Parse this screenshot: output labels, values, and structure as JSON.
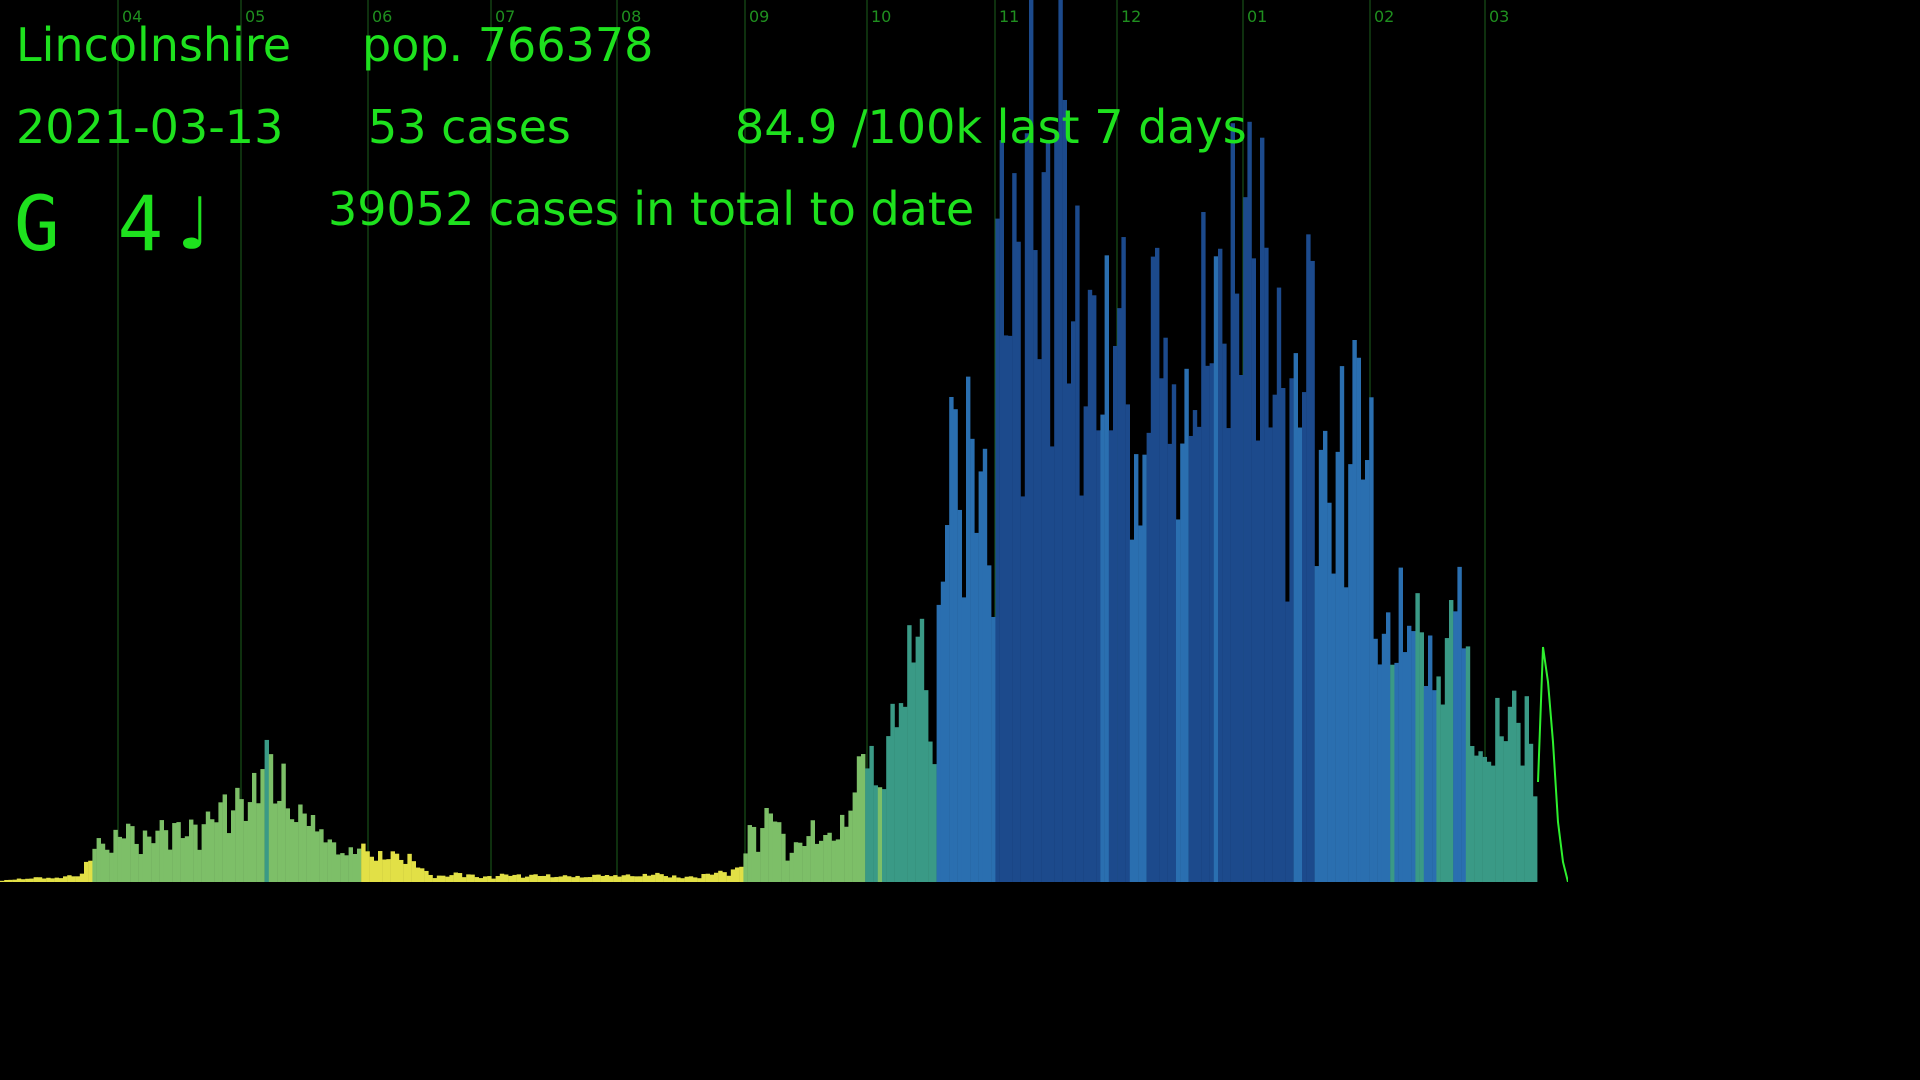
{
  "header": {
    "area": "Lincolnshire",
    "population": "pop. 766378",
    "date": "2021-03-13",
    "cases_today": "53 cases",
    "rate": "84.9 /100k last 7 days",
    "total": "39052 cases in total to date",
    "note_symbol": "G 4♩"
  },
  "colors": {
    "text": "#1ee11e",
    "line": "#2ef02e",
    "grid": "#1d5f1d",
    "tiers": [
      "#e2e046",
      "#7dbf68",
      "#3a9a86",
      "#2a6fb0",
      "#1c4a8c"
    ]
  },
  "chart_data": {
    "type": "bar",
    "x_axis": "months",
    "month_labels": [
      "04",
      "05",
      "06",
      "07",
      "08",
      "09",
      "10",
      "11",
      "12",
      "01",
      "02",
      "03"
    ],
    "series": [
      {
        "values": [
          [
            0,
            1
          ],
          [
            20,
            3
          ],
          [
            40,
            5
          ],
          [
            60,
            4
          ],
          [
            80,
            7
          ],
          [
            95,
            40
          ],
          [
            110,
            35
          ],
          [
            130,
            55
          ],
          [
            150,
            45
          ],
          [
            170,
            50
          ],
          [
            190,
            60
          ],
          [
            210,
            55
          ],
          [
            225,
            75
          ],
          [
            235,
            95
          ],
          [
            245,
            80
          ],
          [
            255,
            90
          ],
          [
            265,
            130
          ],
          [
            275,
            85
          ],
          [
            285,
            120
          ],
          [
            295,
            70
          ],
          [
            310,
            60
          ],
          [
            320,
            55
          ],
          [
            330,
            40
          ],
          [
            345,
            35
          ],
          [
            360,
            30
          ],
          [
            375,
            28
          ],
          [
            390,
            30
          ],
          [
            405,
            25
          ],
          [
            415,
            18
          ],
          [
            425,
            10
          ],
          [
            440,
            6
          ],
          [
            460,
            8
          ],
          [
            480,
            5
          ],
          [
            500,
            7
          ],
          [
            520,
            6
          ],
          [
            540,
            8
          ],
          [
            560,
            5
          ],
          [
            580,
            6
          ],
          [
            600,
            7
          ],
          [
            620,
            6
          ],
          [
            640,
            8
          ],
          [
            660,
            7
          ],
          [
            680,
            5
          ],
          [
            700,
            6
          ],
          [
            720,
            9
          ],
          [
            740,
            15
          ],
          [
            750,
            50
          ],
          [
            760,
            45
          ],
          [
            775,
            75
          ],
          [
            785,
            40
          ],
          [
            800,
            35
          ],
          [
            815,
            50
          ],
          [
            830,
            45
          ],
          [
            845,
            70
          ],
          [
            860,
            100
          ],
          [
            870,
            135
          ],
          [
            880,
            110
          ],
          [
            895,
            180
          ],
          [
            905,
            200
          ],
          [
            915,
            240
          ],
          [
            925,
            210
          ],
          [
            935,
            175
          ],
          [
            945,
            420
          ],
          [
            955,
            400
          ],
          [
            965,
            380
          ],
          [
            975,
            460
          ],
          [
            990,
            390
          ],
          [
            1000,
            660
          ],
          [
            1010,
            520
          ],
          [
            1020,
            600
          ],
          [
            1030,
            860
          ],
          [
            1040,
            700
          ],
          [
            1050,
            640
          ],
          [
            1060,
            800
          ],
          [
            1070,
            540
          ],
          [
            1085,
            680
          ],
          [
            1095,
            520
          ],
          [
            1105,
            480
          ],
          [
            1115,
            580
          ],
          [
            1125,
            550
          ],
          [
            1135,
            450
          ],
          [
            1145,
            500
          ],
          [
            1155,
            520
          ],
          [
            1165,
            530
          ],
          [
            1175,
            500
          ],
          [
            1185,
            470
          ],
          [
            1195,
            580
          ],
          [
            1205,
            550
          ],
          [
            1215,
            480
          ],
          [
            1225,
            700
          ],
          [
            1235,
            720
          ],
          [
            1245,
            640
          ],
          [
            1255,
            650
          ],
          [
            1265,
            560
          ],
          [
            1275,
            520
          ],
          [
            1285,
            590
          ],
          [
            1295,
            460
          ],
          [
            1305,
            510
          ],
          [
            1315,
            520
          ],
          [
            1325,
            400
          ],
          [
            1340,
            470
          ],
          [
            1350,
            460
          ],
          [
            1360,
            420
          ],
          [
            1370,
            430
          ],
          [
            1380,
            300
          ],
          [
            1390,
            240
          ],
          [
            1400,
            270
          ],
          [
            1410,
            260
          ],
          [
            1420,
            230
          ],
          [
            1430,
            280
          ],
          [
            1440,
            230
          ],
          [
            1450,
            220
          ],
          [
            1460,
            320
          ],
          [
            1470,
            180
          ],
          [
            1480,
            120
          ],
          [
            1490,
            170
          ],
          [
            1500,
            150
          ],
          [
            1510,
            140
          ],
          [
            1520,
            190
          ],
          [
            1530,
            160
          ],
          [
            1538,
            100
          ]
        ]
      }
    ],
    "line_points": [
      [
        1538,
        100
      ],
      [
        1543,
        235
      ],
      [
        1548,
        200
      ],
      [
        1553,
        140
      ],
      [
        1558,
        60
      ],
      [
        1563,
        20
      ],
      [
        1568,
        0
      ]
    ]
  }
}
